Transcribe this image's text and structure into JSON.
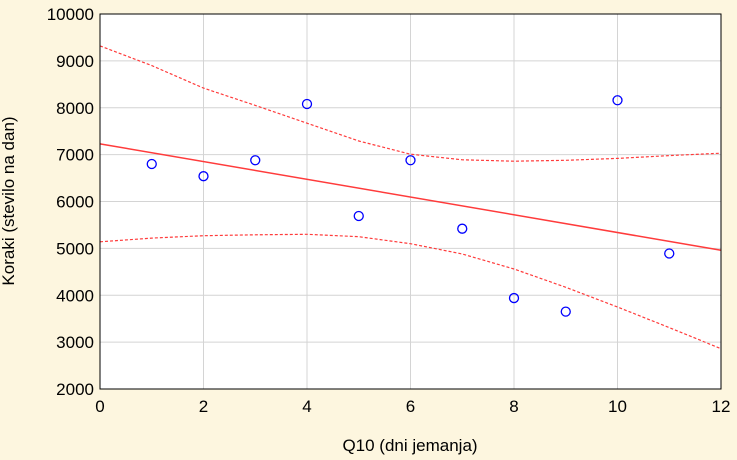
{
  "chart_data": {
    "type": "scatter",
    "xlabel": "Q10 (dni jemanja)",
    "ylabel": "Koraki (stevilo na dan)",
    "xlim": [
      0,
      12
    ],
    "ylim": [
      2000,
      10000
    ],
    "xticks": [
      "0",
      "2",
      "4",
      "6",
      "8",
      "10",
      "12"
    ],
    "yticks": [
      "2000",
      "3000",
      "4000",
      "5000",
      "6000",
      "7000",
      "8000",
      "9000",
      "10000"
    ],
    "grid": true,
    "points": [
      {
        "x": 1,
        "y": 6800
      },
      {
        "x": 2,
        "y": 6540
      },
      {
        "x": 3,
        "y": 6880
      },
      {
        "x": 4,
        "y": 8080
      },
      {
        "x": 5,
        "y": 5690
      },
      {
        "x": 6,
        "y": 6880
      },
      {
        "x": 7,
        "y": 5420
      },
      {
        "x": 8,
        "y": 3940
      },
      {
        "x": 9,
        "y": 3650
      },
      {
        "x": 10,
        "y": 8160
      },
      {
        "x": 11,
        "y": 4890
      }
    ],
    "regression_line": {
      "x": [
        0,
        12
      ],
      "y": [
        7230,
        4960
      ]
    },
    "confidence_upper": {
      "x": [
        0,
        1,
        2,
        3,
        4,
        5,
        6,
        7,
        8,
        9,
        10,
        11,
        12
      ],
      "y": [
        9320,
        8900,
        8420,
        8050,
        7670,
        7290,
        7010,
        6890,
        6860,
        6880,
        6920,
        6980,
        7030
      ]
    },
    "confidence_lower": {
      "x": [
        0,
        1,
        2,
        3,
        4,
        5,
        6,
        7,
        8,
        9,
        10,
        11,
        12
      ],
      "y": [
        5140,
        5220,
        5270,
        5290,
        5300,
        5250,
        5100,
        4880,
        4560,
        4170,
        3750,
        3310,
        2860
      ]
    },
    "colors": {
      "background": "#fdf6df",
      "plot_area": "#ffffff",
      "grid": "#d4d4d4",
      "points": "#0000ff",
      "regression": "#ff3b3b",
      "confidence": "#ff3b3b"
    }
  }
}
